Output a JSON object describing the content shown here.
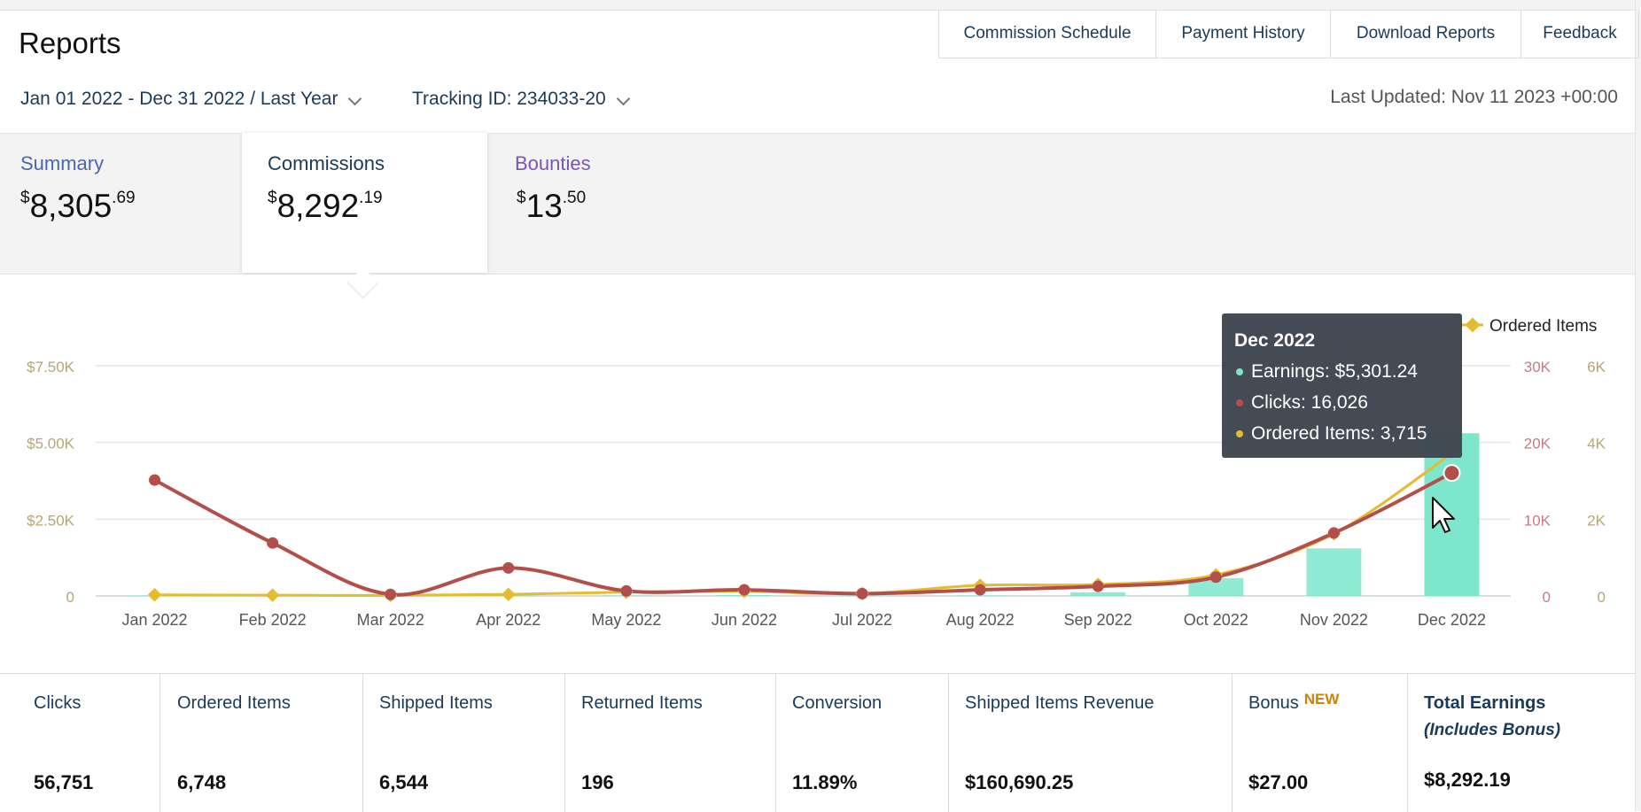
{
  "header": {
    "title": "Reports",
    "top_links": [
      "Commission Schedule",
      "Payment History",
      "Download Reports",
      "Feedback"
    ],
    "date_range": "Jan 01 2022 - Dec 31 2022 / Last Year",
    "tracking_id": "Tracking ID: 234033-20",
    "last_updated": "Last Updated: Nov 11 2023 +00:00"
  },
  "tabs": [
    {
      "label": "Summary",
      "dollars": "8,305",
      "cents": ".69",
      "active": false
    },
    {
      "label": "Commissions",
      "dollars": "8,292",
      "cents": ".19",
      "active": true
    },
    {
      "label": "Bounties",
      "dollars": "13",
      "cents": ".50",
      "active": false
    }
  ],
  "currency_symbol": "$",
  "icons": [
    "chevron-down-icon",
    "mouse-cursor-icon",
    "legend-diamond-icon"
  ],
  "colors": {
    "earnings": "#7ee6cc",
    "clicks": "#b44e4a",
    "ordered": "#e6bb2f",
    "tooltip_bg": "#3f4550",
    "link": "#1a3a59",
    "new_badge": "#c7830a"
  },
  "chart_data": {
    "type": "bar",
    "categories": [
      "Jan 2022",
      "Feb 2022",
      "Mar 2022",
      "Apr 2022",
      "May 2022",
      "Jun 2022",
      "Jul 2022",
      "Aug 2022",
      "Sep 2022",
      "Oct 2022",
      "Nov 2022",
      "Dec 2022"
    ],
    "series": [
      {
        "name": "Earnings",
        "chart": "bar",
        "axis": "left",
        "values": [
          2,
          2,
          1,
          4,
          15,
          30,
          5,
          15,
          120,
          580,
          1550,
          5301.24
        ]
      },
      {
        "name": "Clicks",
        "chart": "line",
        "axis": "right1",
        "values": [
          15100,
          6900,
          200,
          3650,
          650,
          800,
          300,
          800,
          1250,
          2450,
          8200,
          16026
        ]
      },
      {
        "name": "Ordered Items",
        "chart": "line",
        "axis": "right2",
        "values": [
          30,
          20,
          15,
          40,
          100,
          120,
          60,
          280,
          300,
          550,
          1620,
          3715
        ]
      }
    ],
    "y_left": {
      "ticks": [
        "0",
        "$2.50K",
        "$5.00K",
        "$7.50K"
      ],
      "min": 0,
      "max": 7500
    },
    "y_right1": {
      "ticks": [
        "0",
        "10K",
        "20K",
        "30K"
      ],
      "min": 0,
      "max": 30000
    },
    "y_right2": {
      "ticks": [
        "0",
        "2K",
        "4K",
        "6K"
      ],
      "min": 0,
      "max": 6000
    },
    "legend": {
      "position": "top-right",
      "visible_entry": "Ordered Items"
    },
    "grid": true,
    "tooltip": {
      "title": "Dec 2022",
      "rows": [
        {
          "series": "Earnings",
          "text": "Earnings: $5,301.24"
        },
        {
          "series": "Clicks",
          "text": "Clicks: 16,026"
        },
        {
          "series": "Ordered Items",
          "text": "Ordered Items: 3,715"
        }
      ]
    }
  },
  "kpis": [
    {
      "label": "Clicks",
      "value": "56,751"
    },
    {
      "label": "Ordered Items",
      "value": "6,748"
    },
    {
      "label": "Shipped Items",
      "value": "6,544"
    },
    {
      "label": "Returned Items",
      "value": "196"
    },
    {
      "label": "Conversion",
      "value": "11.89%"
    },
    {
      "label": "Shipped Items Revenue",
      "value": "$160,690.25"
    },
    {
      "label": "Bonus",
      "badge": "NEW",
      "value": "$27.00"
    },
    {
      "label": "Total Earnings",
      "sublabel": "(Includes Bonus)",
      "value": "$8,292.19"
    }
  ]
}
